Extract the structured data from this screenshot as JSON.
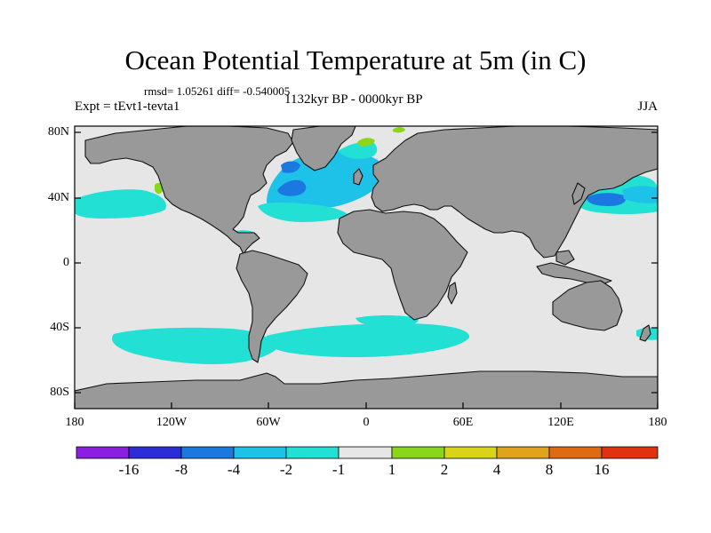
{
  "title": "Ocean Potential Temperature at 5m (in C)",
  "stats": "rmsd= 1.05261 diff= -0.540005",
  "experiment": "Expt = tEvt1-tevta1",
  "period": "1132kyr BP - 0000kyr BP",
  "season": "JJA",
  "lat_labels": [
    "80N",
    "40N",
    "0",
    "40S",
    "80S"
  ],
  "lon_labels": [
    "180",
    "120W",
    "60W",
    "0",
    "60E",
    "120E",
    "180"
  ],
  "colorbar": {
    "labels": [
      "-16",
      "-8",
      "-4",
      "-2",
      "-1",
      "1",
      "2",
      "4",
      "8",
      "16"
    ],
    "colors": [
      "#8a1fe0",
      "#2d2dd8",
      "#1b78e0",
      "#1ec1e8",
      "#22e0d4",
      "#e6e6e6",
      "#8ad61a",
      "#d8d41a",
      "#e0a41a",
      "#e06a12",
      "#e0320e"
    ]
  },
  "colors": {
    "ocean_neutral": "#e6e6e6",
    "land": "#999999",
    "cool_light": "#22e0d4",
    "cool_mid": "#1ec1e8",
    "cool_strong": "#1b78e0",
    "warm_light": "#8ad61a"
  }
}
